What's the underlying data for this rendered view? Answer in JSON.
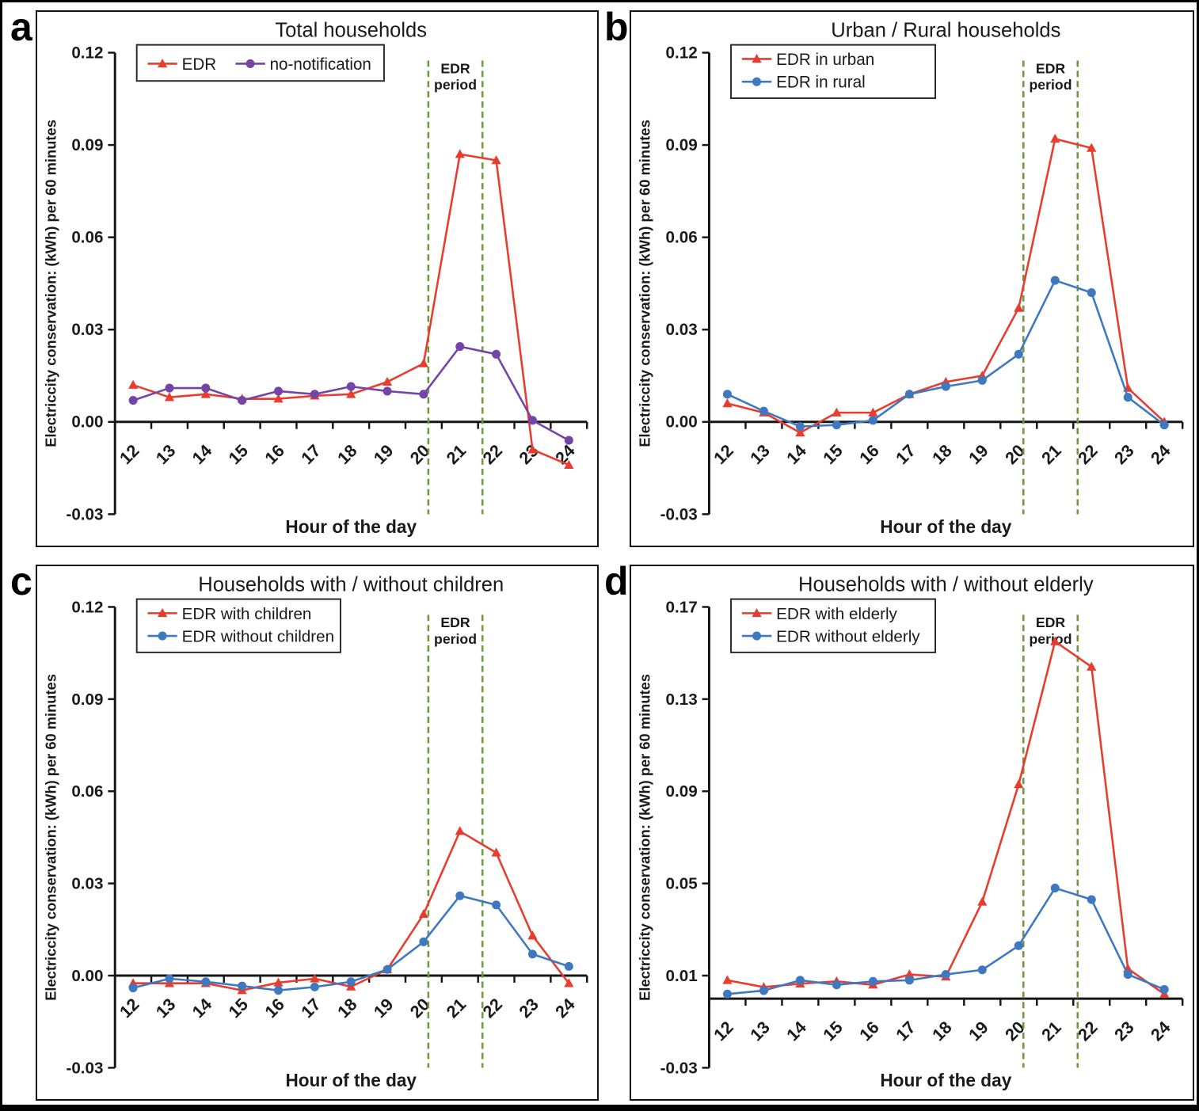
{
  "figure": {
    "ylabel": "Electriccity conservation: (kWh) per 60 minutes",
    "xlabel": "Hour of the day",
    "period_label_line1": "EDR",
    "period_label_line2": "period"
  },
  "colors": {
    "red": "#e73c2e",
    "purple": "#7444a6",
    "blue": "#3e78c1",
    "green": "#6f9740",
    "axis": "#161616",
    "text": "#1a1a1a"
  },
  "panel_letters": {
    "a": "a",
    "b": "b",
    "c": "c",
    "d": "d"
  },
  "chart_data": [
    {
      "id": "a",
      "panel_label": "a",
      "type": "line",
      "title": "Total households",
      "xlabel": "Hour of the day",
      "ylabel": "Electriccity conservation: (kWh) per 60 minutes",
      "x": [
        "12",
        "13",
        "14",
        "15",
        "16",
        "17",
        "18",
        "19",
        "20",
        "21",
        "22",
        "23",
        "24"
      ],
      "ylim": [
        -0.03,
        0.12
      ],
      "yticks": [
        -0.03,
        0.0,
        0.03,
        0.06,
        0.09,
        0.12
      ],
      "grid": false,
      "legend_position": "top-left",
      "legend_layout": "row",
      "edr_period_x": [
        20.13,
        21.62
      ],
      "series": [
        {
          "name": "EDR",
          "color_key": "red",
          "marker": "triangle",
          "values": [
            0.012,
            0.008,
            0.009,
            0.0075,
            0.0075,
            0.0085,
            0.009,
            0.013,
            0.019,
            0.087,
            0.085,
            -0.009,
            -0.014
          ]
        },
        {
          "name": "no-notification",
          "color_key": "purple",
          "marker": "circle",
          "values": [
            0.007,
            0.011,
            0.011,
            0.007,
            0.01,
            0.009,
            0.0115,
            0.01,
            0.009,
            0.0245,
            0.022,
            0.0005,
            -0.006
          ]
        }
      ]
    },
    {
      "id": "b",
      "panel_label": "b",
      "type": "line",
      "title": "Urban / Rural households",
      "xlabel": "Hour of the day",
      "ylabel": "Electriccity conservation: (kWh) per 60 minutes",
      "x": [
        "12",
        "13",
        "14",
        "15",
        "16",
        "17",
        "18",
        "19",
        "20",
        "21",
        "22",
        "23",
        "24"
      ],
      "ylim": [
        -0.03,
        0.12
      ],
      "yticks": [
        -0.03,
        0.0,
        0.03,
        0.06,
        0.09,
        0.12
      ],
      "grid": false,
      "legend_position": "top-left",
      "legend_layout": "column",
      "edr_period_x": [
        20.13,
        21.62
      ],
      "series": [
        {
          "name": "EDR in urban",
          "color_key": "red",
          "marker": "triangle",
          "values": [
            0.006,
            0.003,
            -0.0035,
            0.003,
            0.003,
            0.009,
            0.013,
            0.015,
            0.037,
            0.092,
            0.089,
            0.011,
            0.0
          ]
        },
        {
          "name": "EDR in rural",
          "color_key": "blue",
          "marker": "circle",
          "values": [
            0.009,
            0.0035,
            -0.0015,
            -0.001,
            0.0005,
            0.009,
            0.0115,
            0.0135,
            0.022,
            0.046,
            0.042,
            0.008,
            -0.001
          ]
        }
      ]
    },
    {
      "id": "c",
      "panel_label": "c",
      "type": "line",
      "title": "Households with / without children",
      "xlabel": "Hour of the day",
      "ylabel": "Electriccity conservation: (kWh) per 60 minutes",
      "x": [
        "12",
        "13",
        "14",
        "15",
        "16",
        "17",
        "18",
        "19",
        "20",
        "21",
        "22",
        "23",
        "24"
      ],
      "ylim": [
        -0.03,
        0.12
      ],
      "yticks": [
        -0.03,
        0.0,
        0.03,
        0.06,
        0.09,
        0.12
      ],
      "grid": false,
      "legend_position": "top-left",
      "legend_layout": "column",
      "edr_period_x": [
        20.13,
        21.62
      ],
      "series": [
        {
          "name": "EDR with children",
          "color_key": "red",
          "marker": "triangle",
          "values": [
            -0.0025,
            -0.0025,
            -0.0025,
            -0.0048,
            -0.0023,
            -0.001,
            -0.0036,
            0.002,
            0.02,
            0.047,
            0.04,
            0.013,
            -0.0025
          ]
        },
        {
          "name": "EDR without children",
          "color_key": "blue",
          "marker": "circle",
          "values": [
            -0.004,
            -0.001,
            -0.002,
            -0.0034,
            -0.0048,
            -0.0037,
            -0.002,
            0.002,
            0.011,
            0.026,
            0.023,
            0.007,
            0.003
          ]
        }
      ]
    },
    {
      "id": "d",
      "panel_label": "d",
      "type": "line",
      "title": "Households with / without elderly",
      "xlabel": "Hour of the day",
      "ylabel": "Electriccity conservation: (kWh) per 60 minutes",
      "x": [
        "12",
        "13",
        "14",
        "15",
        "16",
        "17",
        "18",
        "19",
        "20",
        "21",
        "22",
        "23",
        "24"
      ],
      "ylim": [
        -0.03,
        0.17
      ],
      "yticks": [
        -0.03,
        0.01,
        0.05,
        0.09,
        0.13,
        0.17
      ],
      "grid": false,
      "legend_position": "top-left",
      "legend_layout": "column",
      "edr_period_x": [
        20.13,
        21.62
      ],
      "series": [
        {
          "name": "EDR with elderly",
          "color_key": "red",
          "marker": "triangle",
          "values": [
            0.008,
            0.005,
            0.0065,
            0.0075,
            0.006,
            0.0105,
            0.0095,
            0.042,
            0.093,
            0.155,
            0.144,
            0.013,
            0.002
          ]
        },
        {
          "name": "EDR without elderly",
          "color_key": "blue",
          "marker": "circle",
          "values": [
            0.002,
            0.0035,
            0.008,
            0.006,
            0.0075,
            0.008,
            0.0105,
            0.0125,
            0.023,
            0.048,
            0.043,
            0.0105,
            0.004
          ]
        }
      ]
    }
  ]
}
